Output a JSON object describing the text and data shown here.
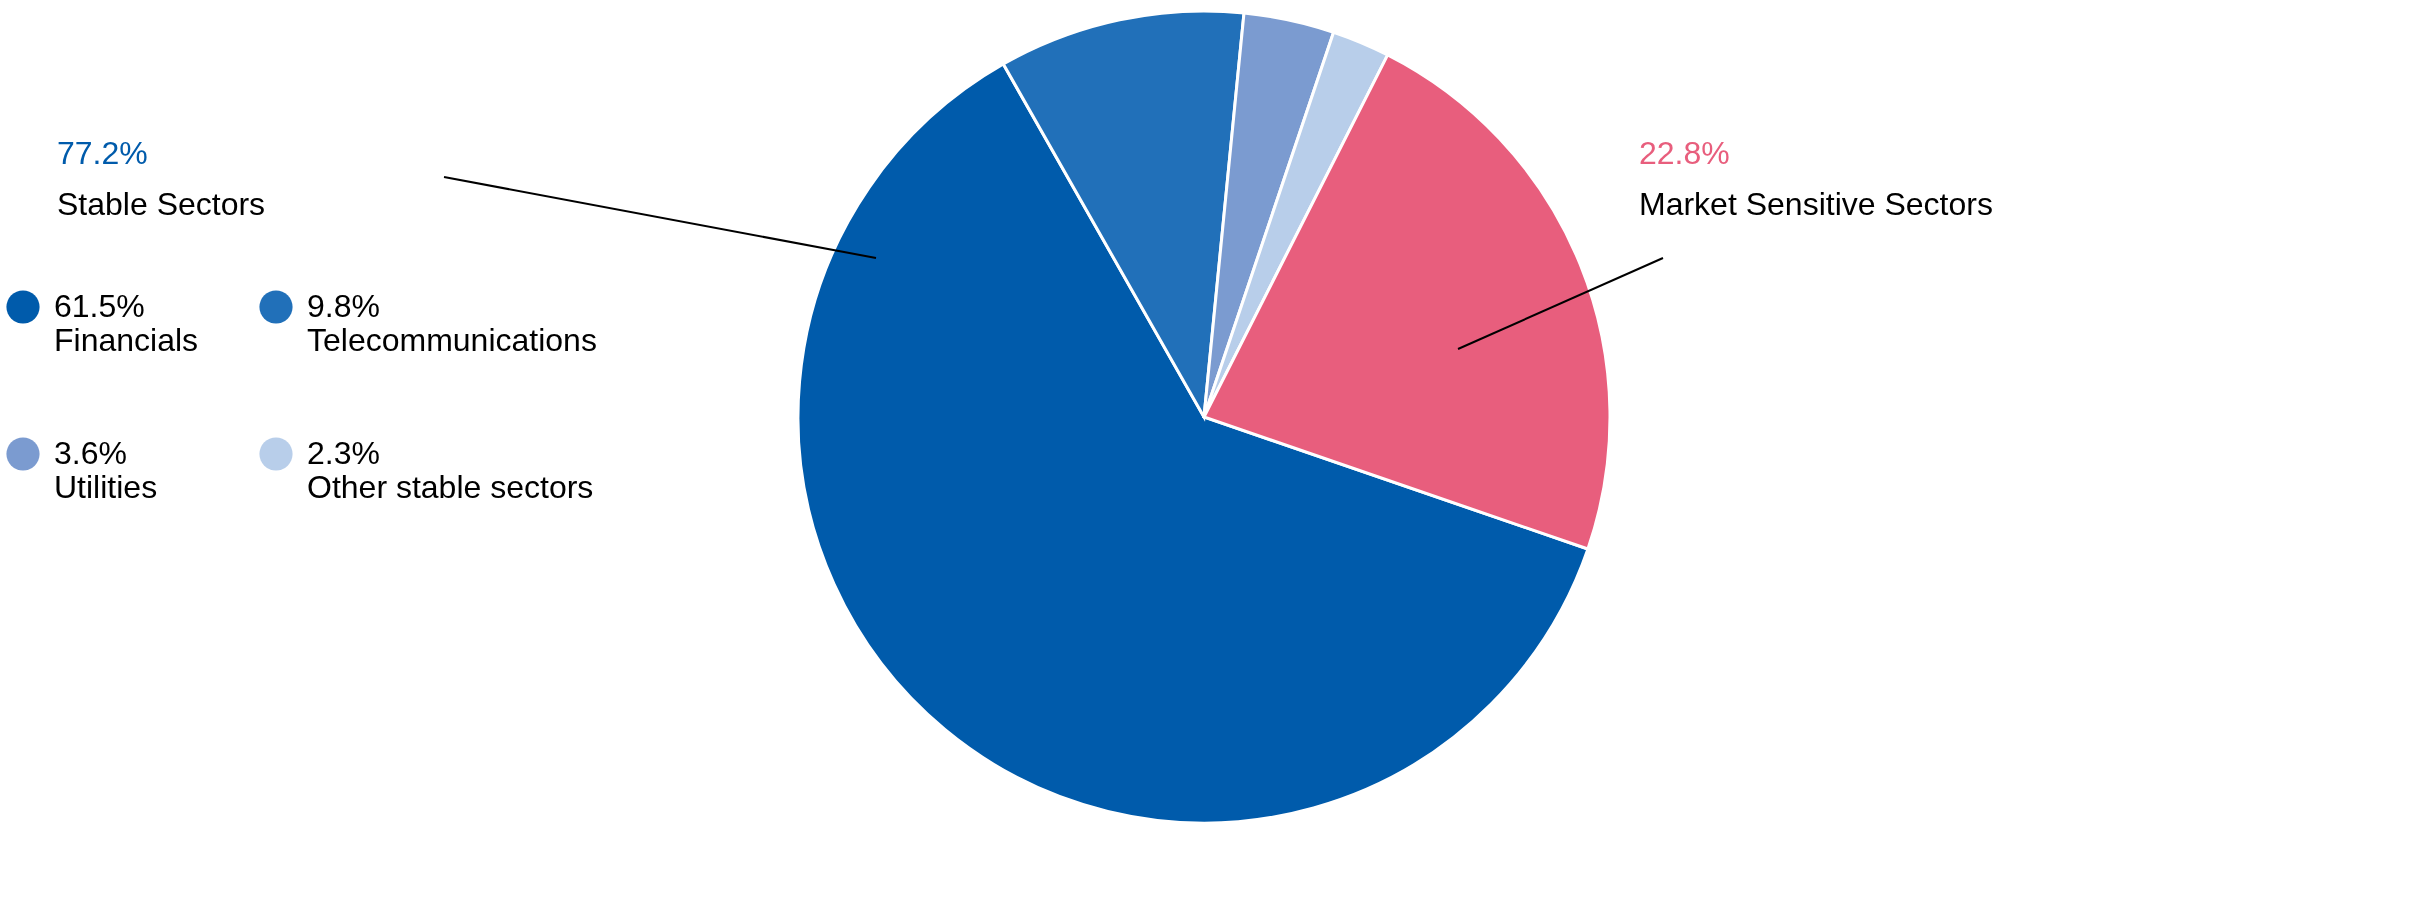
{
  "chart_data": {
    "type": "pie",
    "categories": [
      "Financials",
      "Telecommunications",
      "Utilities",
      "Other stable sectors",
      "Market Sensitive Sectors"
    ],
    "values": [
      61.5,
      9.8,
      3.6,
      2.3,
      22.8
    ],
    "colors": [
      "#005bab",
      "#2170b9",
      "#7b9bd0",
      "#b8ceea",
      "#e85e7d"
    ],
    "value_labels": [
      "61.5%",
      "9.8%",
      "3.6%",
      "2.3%",
      "22.8%"
    ],
    "annotations": [
      "77.2%",
      "Stable Sectors"
    ],
    "legend": "left"
  }
}
